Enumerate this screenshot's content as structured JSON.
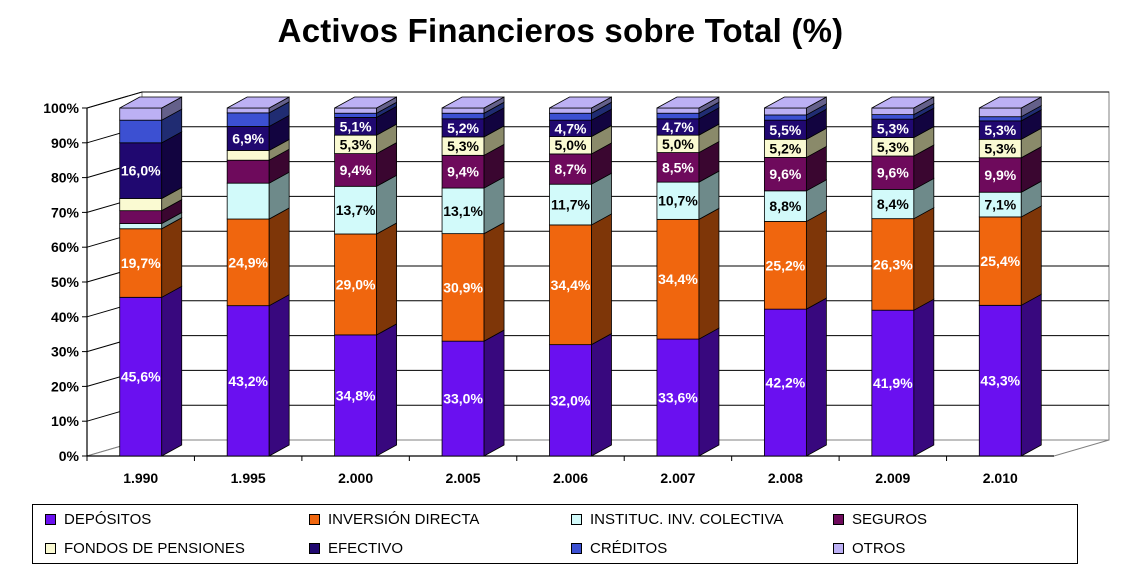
{
  "chart_data": {
    "type": "bar",
    "stacked": true,
    "three_d": true,
    "title": "Activos Financieros sobre Total (%)",
    "xlabel": "",
    "ylabel": "",
    "ylim": [
      0,
      100
    ],
    "y_ticks": [
      "0%",
      "10%",
      "20%",
      "30%",
      "40%",
      "50%",
      "60%",
      "70%",
      "80%",
      "90%",
      "100%"
    ],
    "grid": true,
    "legend_position": "bottom",
    "categories": [
      "1.990",
      "1.995",
      "2.000",
      "2.005",
      "2.006",
      "2.007",
      "2.008",
      "2.009",
      "2.010"
    ],
    "series": [
      {
        "name": "DEPÓSITOS",
        "color": "#6a10f0",
        "side": "#38087e",
        "values": [
          45.6,
          43.2,
          34.8,
          33.0,
          32.0,
          33.6,
          42.2,
          41.9,
          43.3
        ],
        "labels": [
          "45,6%",
          "43,2%",
          "34,8%",
          "33,0%",
          "32,0%",
          "33,6%",
          "42,2%",
          "41,9%",
          "43,3%"
        ],
        "label_color": "#ffffff"
      },
      {
        "name": "INVERSIÓN DIRECTA",
        "color": "#f0660e",
        "side": "#7e3608",
        "values": [
          19.7,
          24.9,
          29.0,
          30.9,
          34.4,
          34.4,
          25.2,
          26.3,
          25.4
        ],
        "labels": [
          "19,7%",
          "24,9%",
          "29,0%",
          "30,9%",
          "34,4%",
          "34,4%",
          "25,2%",
          "26,3%",
          "25,4%"
        ],
        "label_color": "#ffffff"
      },
      {
        "name": "INSTITUC. INV. COLECTIVA",
        "color": "#d2fafa",
        "side": "#6e8a8a",
        "values": [
          1.5,
          10.3,
          13.7,
          13.1,
          11.7,
          10.7,
          8.8,
          8.4,
          7.1
        ],
        "labels": [
          "",
          "",
          "13,7%",
          "13,1%",
          "11,7%",
          "10,7%",
          "8,8%",
          "8,4%",
          "7,1%"
        ],
        "label_color": "#000000"
      },
      {
        "name": "SEGUROS",
        "color": "#6e0a5c",
        "side": "#3a0630",
        "values": [
          3.7,
          6.6,
          9.4,
          9.4,
          8.7,
          8.5,
          9.6,
          9.6,
          9.9
        ],
        "labels": [
          "",
          "",
          "9,4%",
          "9,4%",
          "8,7%",
          "8,5%",
          "9,6%",
          "9,6%",
          "9,9%"
        ],
        "label_color": "#ffffff"
      },
      {
        "name": "FONDOS DE PENSIONES",
        "color": "#fafad2",
        "side": "#8a8a6a",
        "values": [
          3.5,
          2.8,
          5.3,
          5.3,
          5.0,
          5.0,
          5.2,
          5.3,
          5.3
        ],
        "labels": [
          "",
          "",
          "5,3%",
          "5,3%",
          "5,0%",
          "5,0%",
          "5,2%",
          "5,3%",
          "5,3%"
        ],
        "label_color": "#000000"
      },
      {
        "name": "EFECTIVO",
        "color": "#200870",
        "side": "#120440",
        "values": [
          16.0,
          6.9,
          5.1,
          5.2,
          4.7,
          4.7,
          5.5,
          5.3,
          5.3
        ],
        "labels": [
          "16,0%",
          "6,9%",
          "5,1%",
          "5,2%",
          "4,7%",
          "4,7%",
          "5,5%",
          "5,3%",
          "5,3%"
        ],
        "label_color": "#ffffff"
      },
      {
        "name": "CRÉDITOS",
        "color": "#3c50d2",
        "side": "#202c72",
        "values": [
          6.5,
          3.9,
          1.2,
          1.6,
          2.0,
          1.6,
          1.5,
          1.3,
          1.2
        ],
        "labels": [
          "",
          "",
          "",
          "",
          "",
          "",
          "",
          "",
          ""
        ],
        "label_color": "#ffffff"
      },
      {
        "name": "OTROS",
        "color": "#bcb0f4",
        "side": "#64608a",
        "values": [
          3.5,
          1.4,
          1.5,
          1.5,
          1.5,
          1.5,
          2.0,
          1.9,
          2.5
        ],
        "labels": [
          "",
          "",
          "",
          "",
          "",
          "",
          "",
          "",
          ""
        ],
        "label_color": "#000000"
      }
    ]
  }
}
